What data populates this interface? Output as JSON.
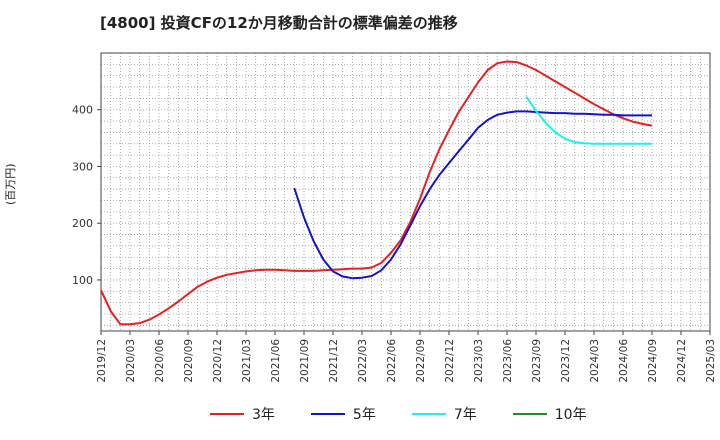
{
  "chart_data": {
    "type": "line",
    "title": "[4800]  投資CFの12か月移動合計の標準偏差の推移",
    "ylabel": "(百万円)",
    "ylim": [
      10,
      500
    ],
    "yticks": [
      100,
      200,
      300,
      400
    ],
    "grid": true,
    "legend_position": "bottom",
    "x_ticks": [
      "2019/12",
      "2020/03",
      "2020/06",
      "2020/09",
      "2020/12",
      "2021/03",
      "2021/06",
      "2021/09",
      "2021/12",
      "2022/03",
      "2022/06",
      "2022/09",
      "2022/12",
      "2023/03",
      "2023/06",
      "2023/09",
      "2023/12",
      "2024/03",
      "2024/06",
      "2024/09",
      "2024/12",
      "2025/03"
    ],
    "series": [
      {
        "name": "3年",
        "color": "#e8201e",
        "x": [
          "2019/12",
          "2020/01",
          "2020/02",
          "2020/03",
          "2020/04",
          "2020/05",
          "2020/06",
          "2020/07",
          "2020/08",
          "2020/09",
          "2020/10",
          "2020/11",
          "2020/12",
          "2021/01",
          "2021/02",
          "2021/03",
          "2021/04",
          "2021/05",
          "2021/06",
          "2021/07",
          "2021/08",
          "2021/09",
          "2021/10",
          "2021/11",
          "2021/12",
          "2022/01",
          "2022/02",
          "2022/03",
          "2022/04",
          "2022/05",
          "2022/06",
          "2022/07",
          "2022/08",
          "2022/09",
          "2022/10",
          "2022/11",
          "2022/12",
          "2023/01",
          "2023/02",
          "2023/03",
          "2023/04",
          "2023/05",
          "2023/06",
          "2023/07",
          "2023/08",
          "2023/09",
          "2023/10",
          "2023/11",
          "2023/12",
          "2024/01",
          "2024/02",
          "2024/03",
          "2024/04",
          "2024/05",
          "2024/06",
          "2024/07",
          "2024/08",
          "2024/09"
        ],
        "values": [
          82,
          45,
          22,
          22,
          24,
          30,
          39,
          50,
          62,
          75,
          88,
          97,
          104,
          109,
          112,
          115,
          117,
          118,
          118,
          117,
          116,
          116,
          116,
          117,
          118,
          119,
          120,
          120,
          122,
          130,
          148,
          170,
          202,
          243,
          290,
          330,
          364,
          396,
          422,
          448,
          470,
          482,
          485,
          484,
          478,
          470,
          460,
          450,
          440,
          430,
          420,
          410,
          401,
          392,
          385,
          379,
          375,
          372
        ]
      },
      {
        "name": "5年",
        "color": "#1414c8",
        "x": [
          "2021/08",
          "2021/09",
          "2021/10",
          "2021/11",
          "2021/12",
          "2022/01",
          "2022/02",
          "2022/03",
          "2022/04",
          "2022/05",
          "2022/06",
          "2022/07",
          "2022/08",
          "2022/09",
          "2022/10",
          "2022/11",
          "2022/12",
          "2023/01",
          "2023/02",
          "2023/03",
          "2023/04",
          "2023/05",
          "2023/06",
          "2023/07",
          "2023/08",
          "2023/09",
          "2023/10",
          "2023/11",
          "2023/12",
          "2024/01",
          "2024/02",
          "2024/03",
          "2024/04",
          "2024/05",
          "2024/06",
          "2024/07",
          "2024/08",
          "2024/09"
        ],
        "values": [
          262,
          210,
          168,
          136,
          115,
          106,
          103,
          104,
          107,
          117,
          136,
          163,
          196,
          230,
          260,
          285,
          306,
          327,
          347,
          368,
          382,
          391,
          395,
          397,
          397,
          396,
          395,
          394,
          394,
          393,
          393,
          392,
          391,
          391,
          390,
          390,
          390,
          390
        ]
      },
      {
        "name": "7年",
        "color": "#1ef0f0",
        "x": [
          "2023/08",
          "2023/09",
          "2023/10",
          "2023/11",
          "2023/12",
          "2024/01",
          "2024/02",
          "2024/03",
          "2024/04",
          "2024/05",
          "2024/06",
          "2024/07",
          "2024/08",
          "2024/09"
        ],
        "values": [
          423,
          398,
          377,
          360,
          349,
          343,
          341,
          340,
          340,
          340,
          340,
          340,
          340,
          340
        ]
      },
      {
        "name": "10年",
        "color": "#228b22",
        "x": [],
        "values": []
      }
    ]
  }
}
